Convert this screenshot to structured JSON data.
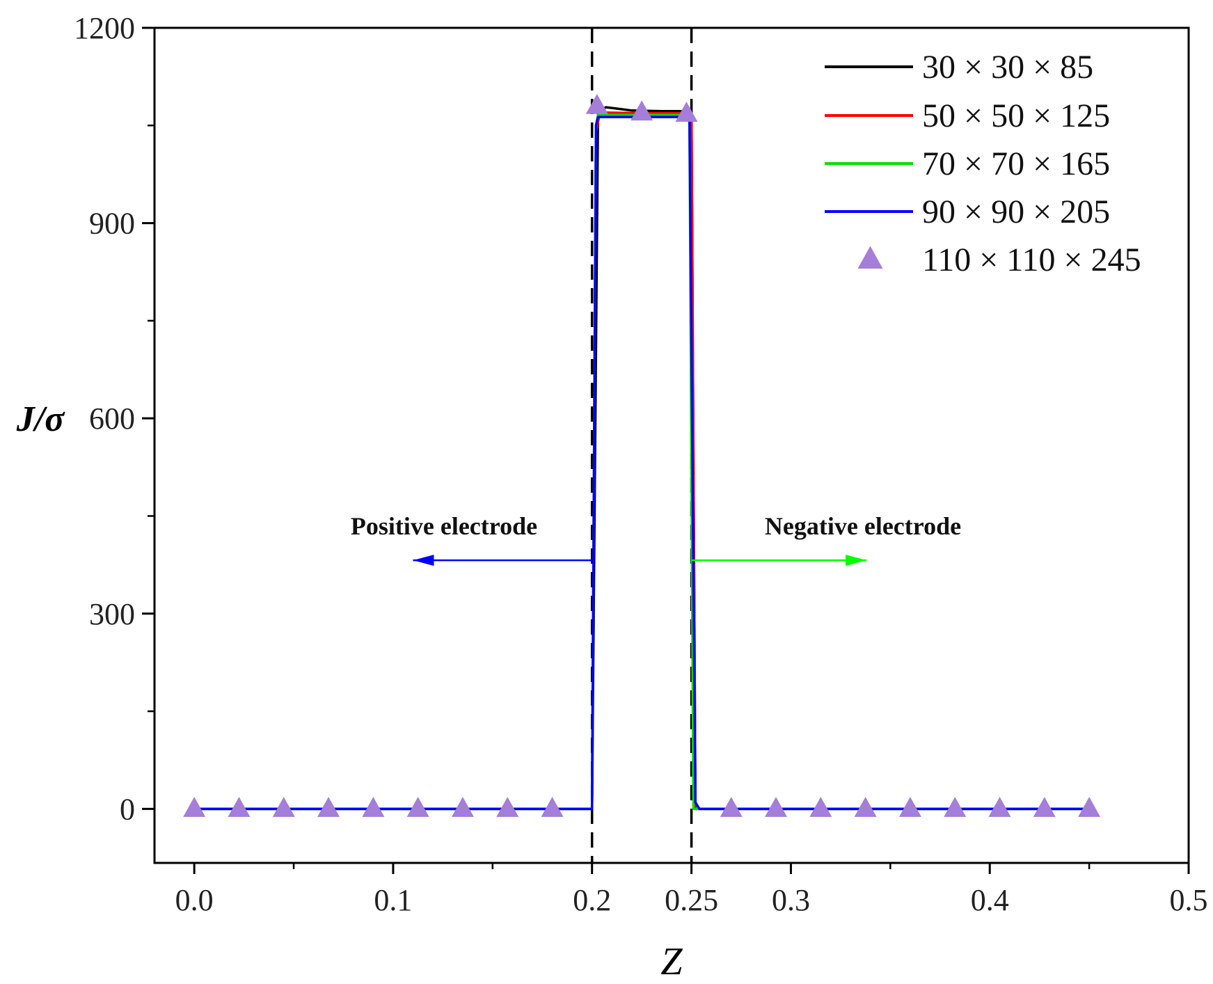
{
  "chart_data": {
    "type": "line",
    "title": "",
    "xlabel": "Z",
    "ylabel": "J/σ",
    "xlim": [
      -0.02,
      0.5
    ],
    "ylim": [
      -83,
      1200
    ],
    "x_ticks": [
      0.0,
      0.1,
      0.2,
      0.25,
      0.3,
      0.4,
      0.5
    ],
    "x_tick_labels": [
      "0.0",
      "0.1",
      "0.2",
      "0.25",
      "0.3",
      "0.4",
      "0.5"
    ],
    "y_ticks": [
      0,
      300,
      600,
      900,
      1200
    ],
    "y_tick_labels": [
      "0",
      "300",
      "600",
      "900",
      "1200"
    ],
    "grid": false,
    "legend_position": "top-right",
    "vertical_lines": [
      0.2,
      0.25
    ],
    "series": [
      {
        "name": "30 × 30 × 85",
        "color": "#000000",
        "style": "line",
        "x": [
          0,
          0.198,
          0.2,
          0.203,
          0.207,
          0.22,
          0.235,
          0.248,
          0.25,
          0.252,
          0.255,
          0.3,
          0.45
        ],
        "y": [
          0,
          0,
          0,
          1070,
          1078,
          1073,
          1072,
          1072,
          1072,
          0,
          0,
          0,
          0
        ]
      },
      {
        "name": "50 × 50 × 125",
        "color": "#ff0000",
        "style": "line",
        "x": [
          0,
          0.199,
          0.2,
          0.202,
          0.204,
          0.22,
          0.235,
          0.248,
          0.25,
          0.252,
          0.254,
          0.3,
          0.45
        ],
        "y": [
          0,
          0,
          0,
          1040,
          1070,
          1069,
          1069,
          1069,
          1069,
          0,
          0,
          0,
          0
        ]
      },
      {
        "name": "70 × 70 × 165",
        "color": "#00e000",
        "style": "line",
        "x": [
          0,
          0.199,
          0.2,
          0.202,
          0.203,
          0.22,
          0.235,
          0.248,
          0.249,
          0.251,
          0.253,
          0.3,
          0.45
        ],
        "y": [
          0,
          0,
          0,
          1050,
          1066,
          1066,
          1066,
          1066,
          1066,
          0,
          0,
          0,
          0
        ]
      },
      {
        "name": "90 × 90 × 205",
        "color": "#0000ff",
        "style": "line",
        "x": [
          0,
          0.199,
          0.2,
          0.202,
          0.203,
          0.22,
          0.235,
          0.248,
          0.249,
          0.252,
          0.254,
          0.3,
          0.45
        ],
        "y": [
          0,
          0,
          0,
          1050,
          1063,
          1063,
          1063,
          1063,
          1063,
          10,
          0,
          0,
          0
        ]
      },
      {
        "name": "110 × 110 × 245",
        "color": "#a47ed8",
        "style": "marker",
        "x": [
          0,
          0.0225,
          0.045,
          0.0675,
          0.09,
          0.1125,
          0.135,
          0.1575,
          0.18,
          0.2025,
          0.225,
          0.2475,
          0.27,
          0.2925,
          0.315,
          0.3375,
          0.36,
          0.3825,
          0.405,
          0.4275,
          0.45
        ],
        "y": [
          0,
          0,
          0,
          0,
          0,
          0,
          0,
          0,
          0,
          1080,
          1070,
          1068,
          0,
          0,
          0,
          0,
          0,
          0,
          0,
          0,
          0
        ]
      }
    ],
    "annotations": [
      {
        "text": "Positive electrode",
        "arrow_from_x": 0.2,
        "arrow_to_x": 0.11,
        "arrow_y": 382,
        "arrow_color": "#0000ff"
      },
      {
        "text": "Negative electrode",
        "arrow_from_x": 0.25,
        "arrow_to_x": 0.338,
        "arrow_y": 382,
        "arrow_color": "#00ff00"
      }
    ]
  }
}
